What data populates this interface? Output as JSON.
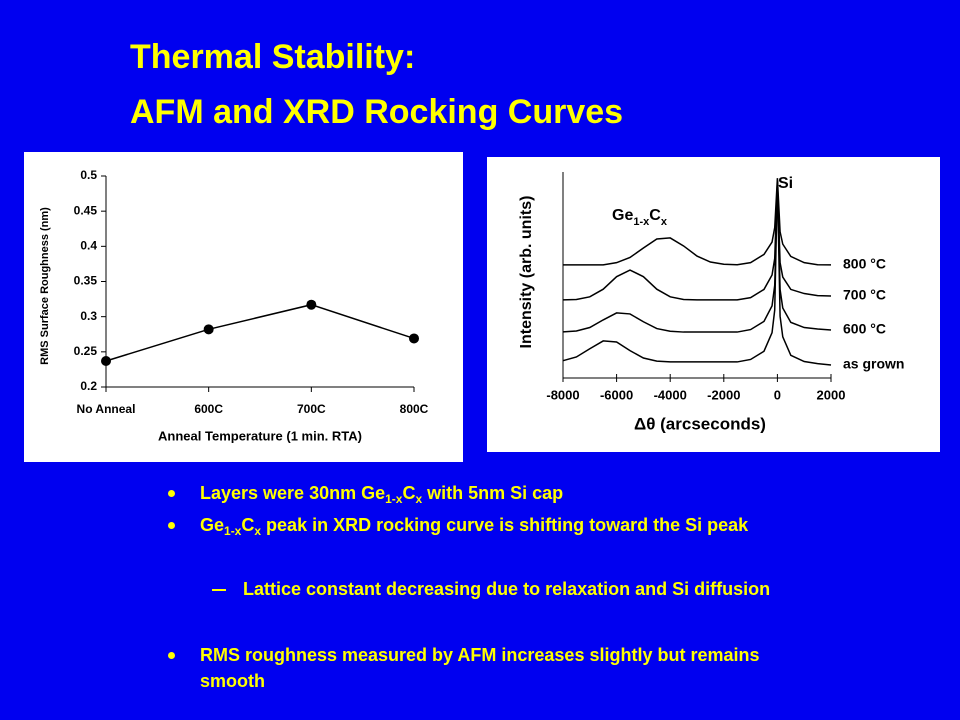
{
  "title": [
    "Thermal Stability:",
    "AFM and XRD Rocking Curves"
  ],
  "chart_data": [
    {
      "type": "line",
      "xlabel": "Anneal Temperature (1 min. RTA)",
      "ylabel": "RMS Surface Roughness (nm)",
      "categories": [
        "No Anneal",
        "600C",
        "700C",
        "800C"
      ],
      "values": [
        0.237,
        0.282,
        0.317,
        0.269
      ],
      "color": "#000000",
      "ylim": [
        0.2,
        0.5
      ],
      "yticks": [
        0.2,
        0.25,
        0.3,
        0.35,
        0.4,
        0.45,
        0.5
      ]
    },
    {
      "type": "line",
      "xlabel": "Δθ (arcseconds)",
      "ylabel": "Intensity (arb. units)",
      "x": [
        -8000,
        -7500,
        -7000,
        -6500,
        -6000,
        -5500,
        -5000,
        -4500,
        -4000,
        -3500,
        -3000,
        -2500,
        -2000,
        -1500,
        -1000,
        -500,
        -200,
        -100,
        0,
        100,
        200,
        500,
        1000,
        1500,
        2000
      ],
      "xlim": [
        -8000,
        2000
      ],
      "xticks": [
        -8000,
        -6000,
        -4000,
        -2000,
        0,
        2000
      ],
      "ylim": [
        0,
        10
      ],
      "series": [
        {
          "name": "800 °C",
          "color": "#000000",
          "values": [
            5.49,
            5.49,
            5.49,
            5.49,
            5.6,
            5.85,
            6.31,
            6.75,
            6.8,
            6.41,
            5.92,
            5.63,
            5.52,
            5.5,
            5.6,
            6.0,
            6.6,
            7.3,
            9.7,
            7.1,
            6.5,
            5.9,
            5.6,
            5.5,
            5.49
          ]
        },
        {
          "name": "700 °C",
          "color": "#000000",
          "values": [
            3.79,
            3.81,
            3.94,
            4.31,
            4.92,
            5.24,
            4.92,
            4.31,
            3.94,
            3.81,
            3.79,
            3.79,
            3.79,
            3.79,
            3.9,
            4.3,
            5.0,
            5.8,
            9.6,
            5.6,
            4.9,
            4.3,
            4.1,
            4.0,
            3.98
          ]
        },
        {
          "name": "600 °C",
          "color": "#000000",
          "values": [
            2.24,
            2.28,
            2.45,
            2.82,
            3.16,
            3.11,
            2.73,
            2.4,
            2.27,
            2.23,
            2.23,
            2.23,
            2.23,
            2.23,
            2.35,
            2.75,
            3.5,
            4.5,
            9.37,
            4.3,
            3.4,
            2.7,
            2.45,
            2.38,
            2.33
          ]
        },
        {
          "name": "as grown",
          "color": "#000000",
          "values": [
            0.84,
            1.02,
            1.42,
            1.8,
            1.75,
            1.33,
            0.97,
            0.82,
            0.78,
            0.78,
            0.78,
            0.78,
            0.78,
            0.78,
            0.9,
            1.3,
            2.2,
            3.3,
            9.6,
            3.0,
            2.0,
            1.1,
            0.8,
            0.7,
            0.63
          ]
        }
      ],
      "peak_labels": [
        [
          {
            "text": "Si"
          }
        ],
        [
          {
            "text": "Ge"
          },
          {
            "text": "1-x",
            "sub": true
          },
          {
            "text": "C"
          },
          {
            "text": "x",
            "sub": true
          }
        ]
      ]
    }
  ],
  "bullets": [
    {
      "level": 1,
      "segments": [
        {
          "text": "Layers were 30nm Ge"
        },
        {
          "text": "1-x",
          "sub": true
        },
        {
          "text": "C"
        },
        {
          "text": "x",
          "sub": true
        },
        {
          "text": " with 5nm Si cap"
        }
      ]
    },
    {
      "level": 1,
      "segments": [
        {
          "text": "Ge"
        },
        {
          "text": "1-x",
          "sub": true
        },
        {
          "text": "C"
        },
        {
          "text": "x",
          "sub": true
        },
        {
          "text": " peak in XRD rocking curve is shifting toward the Si peak"
        }
      ]
    },
    {
      "level": 2,
      "segments": [
        {
          "text": "Lattice constant decreasing due to relaxation and Si diffusion"
        }
      ]
    },
    {
      "level": 1,
      "segments": [
        {
          "text": "RMS roughness measured by AFM increases slightly but remains smooth"
        }
      ]
    }
  ]
}
